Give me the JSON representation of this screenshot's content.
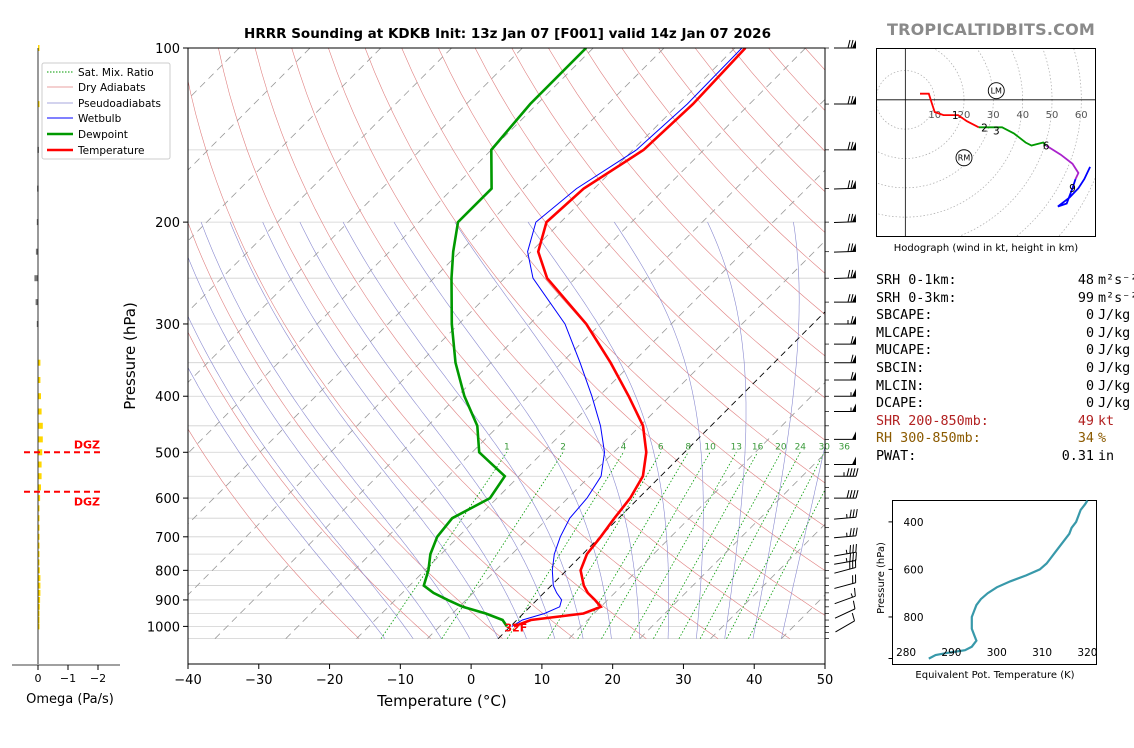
{
  "branding": "TROPICALTIDBITS.COM",
  "title": "HRRR Sounding at KDKB Init: 13z Jan 07 [F001] valid 14z Jan 07 2026",
  "chart_data": [
    {
      "type": "skew-t",
      "title": "HRRR Sounding at KDKB Init: 13z Jan 07 [F001] valid 14z Jan 07 2026",
      "xlabel": "Temperature (°C)",
      "ylabel": "Pressure (hPa)",
      "xlim": [
        -40,
        50
      ],
      "ylim": [
        1050,
        100
      ],
      "y_scale": "log",
      "x_ticks": [
        "−40",
        "−30",
        "−20",
        "−10",
        "0",
        "10",
        "20",
        "30",
        "40",
        "50"
      ],
      "y_ticks": [
        "100",
        "200",
        "300",
        "400",
        "500",
        "600",
        "700",
        "800",
        "900",
        "1000"
      ],
      "legend_position": "top-left",
      "legend": [
        "Sat. Mix. Ratio",
        "Dry Adiabats",
        "Pseudoadiabats",
        "Wetbulb",
        "Dewpoint",
        "Temperature"
      ],
      "mixing_ratio_labels": [
        "1",
        "2",
        "4",
        "6",
        "8",
        "10",
        "13",
        "16",
        "20",
        "24",
        "30",
        "36"
      ],
      "surface_temp_label": "32F",
      "series": [
        {
          "name": "Temperature",
          "color": "#ff0000",
          "p": [
            1000,
            975,
            950,
            925,
            900,
            875,
            850,
            800,
            750,
            700,
            650,
            600,
            550,
            500,
            450,
            400,
            350,
            300,
            250,
            225,
            200,
            175,
            150,
            125,
            100
          ],
          "t": [
            0.5,
            2.0,
            8.5,
            10.0,
            8.2,
            6.2,
            4.6,
            2.0,
            0.6,
            0.1,
            -0.6,
            -1.2,
            -2.5,
            -5.4,
            -9.6,
            -15.8,
            -23.1,
            -32.0,
            -44.0,
            -49.0,
            -52.0,
            -51.5,
            -48.5,
            -48.0,
            -48.5
          ]
        },
        {
          "name": "Dewpoint",
          "color": "#009900",
          "p": [
            1000,
            975,
            950,
            925,
            900,
            875,
            850,
            800,
            750,
            700,
            650,
            600,
            550,
            500,
            450,
            400,
            350,
            300,
            250,
            225,
            200,
            175,
            150,
            125,
            100
          ],
          "t": [
            -0.5,
            -2.0,
            -5.3,
            -9.5,
            -12.6,
            -15.6,
            -18.0,
            -19.5,
            -21.5,
            -23.0,
            -23.5,
            -21.0,
            -22.0,
            -29.0,
            -33.0,
            -39.0,
            -45.0,
            -51.0,
            -57.5,
            -61.0,
            -64.5,
            -64.5,
            -70.0,
            -71.0,
            -71.0
          ]
        },
        {
          "name": "Wetbulb",
          "color": "#0000ff",
          "p": [
            1000,
            975,
            950,
            925,
            900,
            875,
            850,
            800,
            750,
            700,
            650,
            600,
            550,
            500,
            450,
            400,
            350,
            300,
            250,
            225,
            200,
            175,
            150,
            125,
            100
          ],
          "t": [
            0.2,
            0.8,
            3.0,
            4.2,
            3.5,
            1.8,
            0.3,
            -2.0,
            -4.0,
            -5.6,
            -6.9,
            -7.3,
            -8.4,
            -11.3,
            -15.6,
            -21.0,
            -27.4,
            -35.0,
            -46.0,
            -50.5,
            -53.5,
            -52.5,
            -49.5,
            -48.8,
            -49.0
          ]
        }
      ]
    },
    {
      "type": "bar",
      "orientation": "horizontal",
      "title": "",
      "xlabel": "Omega (Pa/s)",
      "x_ticks": [
        "0",
        "−1",
        "−2"
      ],
      "xlim": [
        0.5,
        -2
      ],
      "dgz_pressures": [
        500,
        585
      ],
      "dgz_label": "DGZ",
      "p": [
        100,
        125,
        150,
        175,
        200,
        225,
        250,
        275,
        300,
        350,
        375,
        400,
        425,
        450,
        475,
        500,
        525,
        550,
        575,
        600,
        625,
        650,
        675,
        700,
        725,
        750,
        775,
        800,
        825,
        850,
        875,
        900,
        925,
        950,
        975,
        1000
      ],
      "values": [
        -0.05,
        -0.05,
        0.02,
        0.03,
        0.04,
        0.07,
        0.12,
        0.08,
        0.04,
        -0.08,
        -0.08,
        -0.1,
        -0.12,
        -0.16,
        -0.16,
        -0.14,
        -0.12,
        -0.12,
        -0.1,
        -0.07,
        -0.05,
        -0.04,
        -0.03,
        -0.02,
        -0.02,
        -0.02,
        -0.04,
        -0.06,
        -0.08,
        -0.08,
        -0.08,
        -0.07,
        -0.06,
        -0.03,
        -0.01,
        0.0
      ],
      "bar_colors": [
        "#ffd700",
        "#ffd700",
        "#777777",
        "#777777",
        "#777777",
        "#777777",
        "#777777",
        "#777777",
        "#777777",
        "#ffd700",
        "#ffd700",
        "#ffd700",
        "#ffd700",
        "#ffd700",
        "#ffd700",
        "#ffd700",
        "#ffd700",
        "#ffd700",
        "#ffd700",
        "#ffd700",
        "#ffd700",
        "#ffd700",
        "#ffd700",
        "#ffd700",
        "#ffd700",
        "#ffd700",
        "#ffd700",
        "#ffd700",
        "#ffd700",
        "#ffd700",
        "#ffd700",
        "#ffd700",
        "#ffd700",
        "#ffd700",
        "#ffd700",
        "#ffd700"
      ]
    },
    {
      "type": "hodograph",
      "title": "",
      "caption": "Hodograph (wind in kt, height in km)",
      "xlim": [
        -10,
        65
      ],
      "ylim": [
        -45,
        17
      ],
      "ring_labels": [
        "10",
        "20",
        "30",
        "40",
        "50",
        "60"
      ],
      "storm_motion": [
        {
          "label": "LM",
          "u": 31,
          "v": 3
        },
        {
          "label": "RM",
          "u": 20,
          "v": -19
        }
      ],
      "height_labels": [
        {
          "label": "1",
          "u": 17,
          "v": -5
        },
        {
          "label": "2",
          "u": 27,
          "v": -9
        },
        {
          "label": "3",
          "u": 31,
          "v": -10
        },
        {
          "label": "6",
          "u": 48,
          "v": -15
        },
        {
          "label": "9",
          "u": 57,
          "v": -29
        }
      ],
      "segments": [
        {
          "color": "#ff0000",
          "points": [
            [
              5,
              2
            ],
            [
              8,
              2
            ],
            [
              9,
              -1
            ],
            [
              10,
              -4
            ],
            [
              13,
              -5
            ],
            [
              18,
              -5
            ],
            [
              21,
              -7
            ],
            [
              25,
              -9
            ]
          ]
        },
        {
          "color": "#009900",
          "points": [
            [
              25,
              -9
            ],
            [
              29,
              -9
            ],
            [
              33,
              -9
            ],
            [
              37,
              -11
            ],
            [
              41,
              -14
            ],
            [
              43,
              -15
            ],
            [
              47,
              -14
            ],
            [
              48,
              -15
            ]
          ]
        },
        {
          "color": "#aa22cc",
          "points": [
            [
              48,
              -15
            ],
            [
              53,
              -18
            ],
            [
              57,
              -21
            ],
            [
              59,
              -24
            ],
            [
              58,
              -26
            ]
          ]
        },
        {
          "color": "#0000ff",
          "points": [
            [
              58,
              -26
            ],
            [
              57,
              -29
            ],
            [
              55,
              -34
            ],
            [
              52,
              -35
            ],
            [
              56,
              -32
            ],
            [
              59,
              -29
            ],
            [
              61,
              -26
            ],
            [
              63,
              -22
            ]
          ]
        }
      ]
    },
    {
      "type": "line",
      "title": "",
      "xlabel": "Equivalent Pot. Temperature (K)",
      "ylabel": "Pressure (hPa)",
      "xlim": [
        277,
        322
      ],
      "ylim": [
        1000,
        310
      ],
      "x_ticks": [
        "280",
        "290",
        "300",
        "310",
        "320"
      ],
      "y_ticks": [
        "400",
        "600",
        "800"
      ],
      "series": [
        {
          "name": "",
          "color": "#3899aa",
          "p": [
            975,
            960,
            950,
            940,
            925,
            900,
            875,
            850,
            825,
            800,
            775,
            750,
            725,
            700,
            675,
            650,
            625,
            600,
            575,
            550,
            525,
            500,
            475,
            450,
            425,
            400,
            375,
            350,
            325,
            310
          ],
          "x": [
            285.0,
            286.5,
            289.5,
            293.0,
            294.5,
            295.5,
            295.0,
            294.5,
            294.5,
            294.5,
            295.0,
            295.5,
            296.5,
            298.0,
            300.0,
            303.0,
            306.5,
            309.5,
            311.0,
            312.0,
            313.0,
            314.0,
            315.0,
            316.0,
            316.5,
            317.5,
            318.0,
            318.5,
            319.5,
            320.0
          ]
        }
      ]
    }
  ],
  "stats": [
    {
      "label": "SRH 0-1km:",
      "value": "48",
      "unit": "m²s⁻²",
      "color": "#000000"
    },
    {
      "label": "SRH 0-3km:",
      "value": "99",
      "unit": "m²s⁻²",
      "color": "#000000"
    },
    {
      "label": "SBCAPE:",
      "value": "0",
      "unit": "J/kg",
      "color": "#000000"
    },
    {
      "label": "MLCAPE:",
      "value": "0",
      "unit": "J/kg",
      "color": "#000000"
    },
    {
      "label": "MUCAPE:",
      "value": "0",
      "unit": "J/kg",
      "color": "#000000"
    },
    {
      "label": "SBCIN:",
      "value": "0",
      "unit": "J/kg",
      "color": "#000000"
    },
    {
      "label": "MLCIN:",
      "value": "0",
      "unit": "J/kg",
      "color": "#000000"
    },
    {
      "label": "DCAPE:",
      "value": "0",
      "unit": "J/kg",
      "color": "#000000"
    },
    {
      "label": "SHR 200-850mb:",
      "value": "49",
      "unit": "kt",
      "color": "#b22222"
    },
    {
      "label": "RH 300-850mb:",
      "value": "34",
      "unit": "%",
      "color": "#8b5a00"
    },
    {
      "label": "PWAT:",
      "value": "0.31",
      "unit": "in",
      "color": "#000000"
    }
  ],
  "wind_barbs": [
    {
      "p": 100,
      "dir": 270,
      "kt": 70
    },
    {
      "p": 125,
      "dir": 270,
      "kt": 70
    },
    {
      "p": 150,
      "dir": 270,
      "kt": 70
    },
    {
      "p": 175,
      "dir": 272,
      "kt": 70
    },
    {
      "p": 200,
      "dir": 272,
      "kt": 72
    },
    {
      "p": 225,
      "dir": 272,
      "kt": 72
    },
    {
      "p": 250,
      "dir": 272,
      "kt": 72
    },
    {
      "p": 275,
      "dir": 270,
      "kt": 70
    },
    {
      "p": 300,
      "dir": 270,
      "kt": 65
    },
    {
      "p": 325,
      "dir": 270,
      "kt": 60
    },
    {
      "p": 350,
      "dir": 270,
      "kt": 60
    },
    {
      "p": 375,
      "dir": 270,
      "kt": 60
    },
    {
      "p": 400,
      "dir": 270,
      "kt": 55
    },
    {
      "p": 425,
      "dir": 270,
      "kt": 55
    },
    {
      "p": 475,
      "dir": 270,
      "kt": 50
    },
    {
      "p": 525,
      "dir": 270,
      "kt": 50
    },
    {
      "p": 550,
      "dir": 270,
      "kt": 45
    },
    {
      "p": 600,
      "dir": 270,
      "kt": 40
    },
    {
      "p": 650,
      "dir": 275,
      "kt": 35
    },
    {
      "p": 700,
      "dir": 275,
      "kt": 35
    },
    {
      "p": 750,
      "dir": 280,
      "kt": 35
    },
    {
      "p": 775,
      "dir": 280,
      "kt": 35
    },
    {
      "p": 800,
      "dir": 285,
      "kt": 30
    },
    {
      "p": 850,
      "dir": 285,
      "kt": 20
    },
    {
      "p": 900,
      "dir": 290,
      "kt": 15
    },
    {
      "p": 950,
      "dir": 295,
      "kt": 10
    },
    {
      "p": 1000,
      "dir": 300,
      "kt": 10
    }
  ]
}
